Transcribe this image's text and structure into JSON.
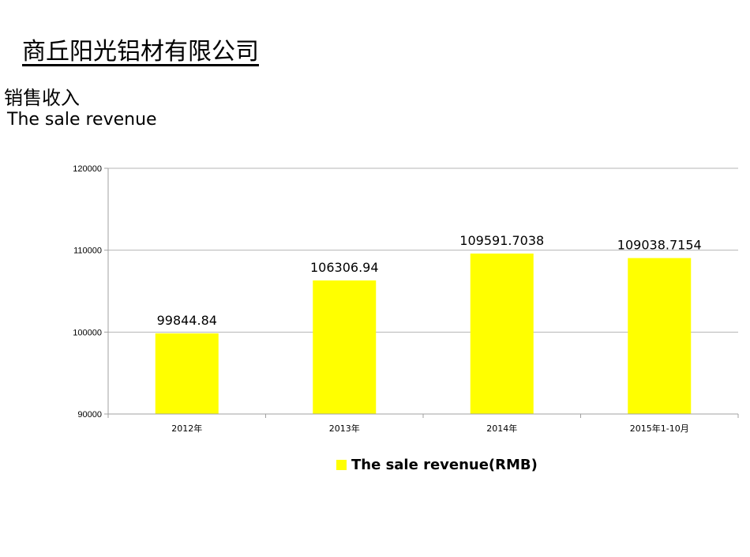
{
  "header": {
    "company": "商丘阳光铝材有限公司",
    "subtitle_cn": "销售收入",
    "subtitle_en": "The sale revenue"
  },
  "colors": {
    "bar": "#ffff00",
    "grid": "#b5b5b5",
    "axis": "#a0a0a0"
  },
  "chart_data": {
    "type": "bar",
    "categories": [
      "2012年",
      "2013年",
      "2014年",
      "2015年1-10月"
    ],
    "series": [
      {
        "name": "The sale revenue(RMB)",
        "values": [
          99844.84,
          106306.94,
          109591.7038,
          109038.7154
        ]
      }
    ],
    "data_labels": [
      "99844.84",
      "106306.94",
      "109591.7038",
      "109038.7154"
    ],
    "y_ticks": [
      "90000",
      "100000",
      "110000",
      "120000"
    ],
    "ylim": [
      90000,
      120000
    ],
    "grid": true,
    "legend_position": "bottom"
  }
}
